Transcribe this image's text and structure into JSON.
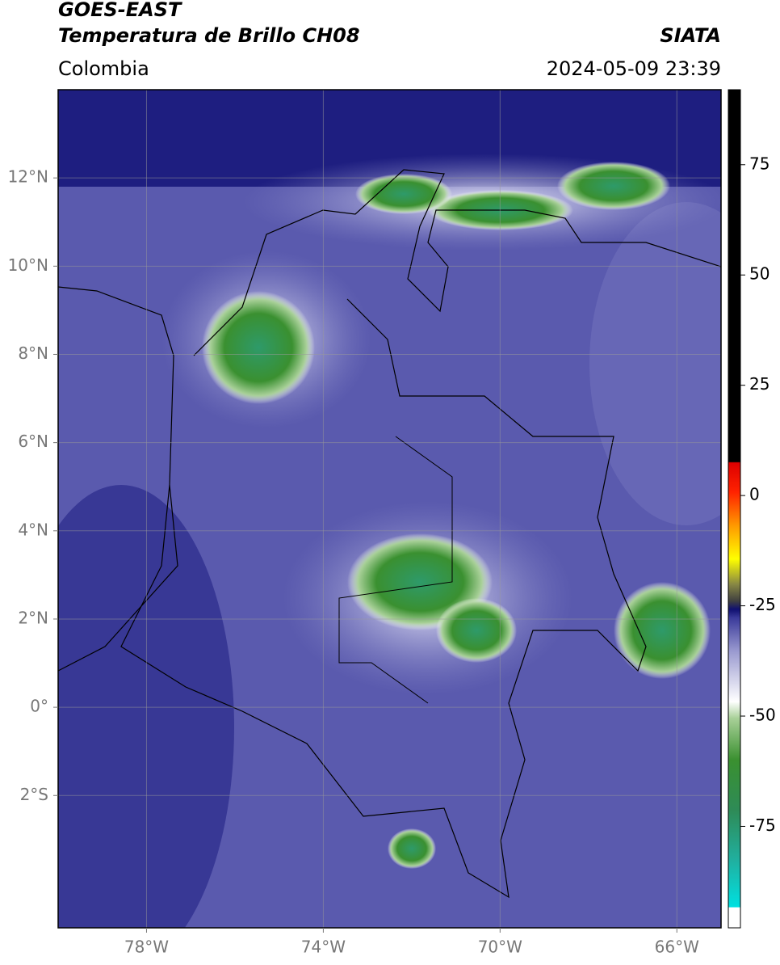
{
  "header": {
    "satellite": "GOES-EAST",
    "product": "Temperatura de Brillo CH08",
    "region": "Colombia",
    "source": "SIATA",
    "datetime": "2024-05-09 23:39"
  },
  "map": {
    "xlim": [
      -80,
      -65
    ],
    "ylim": [
      -5,
      14
    ],
    "xticks": [
      {
        "value": -78,
        "label": "78°W"
      },
      {
        "value": -74,
        "label": "74°W"
      },
      {
        "value": -70,
        "label": "70°W"
      },
      {
        "value": -66,
        "label": "66°W"
      }
    ],
    "yticks": [
      {
        "value": 12,
        "label": "12°N"
      },
      {
        "value": 10,
        "label": "10°N"
      },
      {
        "value": 8,
        "label": "8°N"
      },
      {
        "value": 6,
        "label": "6°N"
      },
      {
        "value": 4,
        "label": "4°N"
      },
      {
        "value": 2,
        "label": "2°N"
      },
      {
        "value": 0,
        "label": "0°"
      },
      {
        "value": -2,
        "label": "2°S"
      }
    ]
  },
  "colorbar": {
    "lim": [
      -98,
      92
    ],
    "ticks": [
      75,
      50,
      25,
      0,
      -25,
      -50,
      -75
    ]
  }
}
